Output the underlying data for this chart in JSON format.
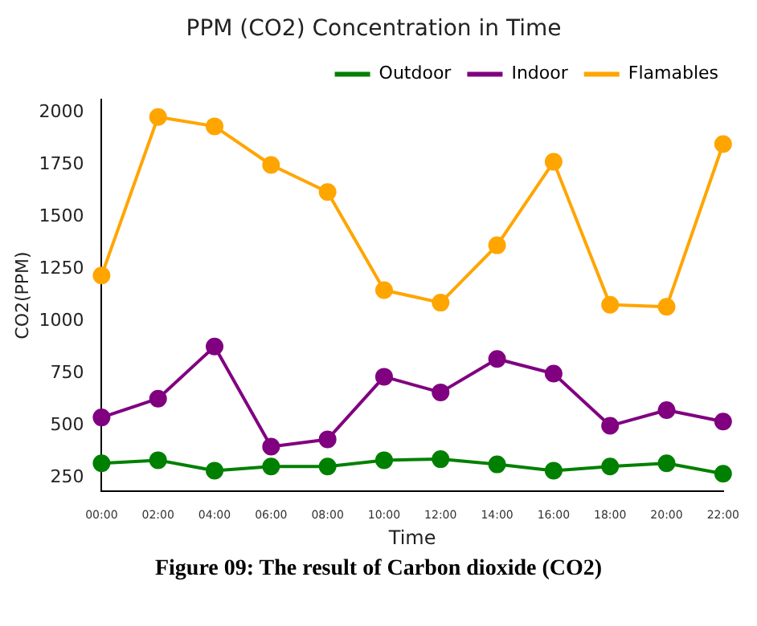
{
  "chart_data": {
    "type": "line",
    "title": "PPM (CO2) Concentration in Time",
    "xlabel": "Time",
    "ylabel": "CO2(PPM)",
    "categories": [
      "00:00",
      "02:00",
      "04:00",
      "06:00",
      "08:00",
      "10:00",
      "12:00",
      "14:00",
      "16:00",
      "18:00",
      "20:00",
      "22:00"
    ],
    "series": [
      {
        "name": "Outdoor",
        "color": "#008000",
        "values": [
          320,
          335,
          285,
          305,
          305,
          335,
          340,
          315,
          285,
          305,
          320,
          270
        ]
      },
      {
        "name": "Indoor",
        "color": "#800080",
        "values": [
          540,
          630,
          880,
          400,
          435,
          735,
          660,
          820,
          750,
          500,
          575,
          520
        ]
      },
      {
        "name": "Flamables",
        "color": "#ffa500",
        "values": [
          1220,
          1980,
          1935,
          1750,
          1620,
          1150,
          1090,
          1365,
          1765,
          1080,
          1070,
          1850
        ]
      }
    ],
    "ylim": [
      185,
      2065
    ],
    "yticks": [
      250,
      500,
      750,
      1000,
      1250,
      1500,
      1750,
      2000
    ],
    "legend": "top right",
    "marker": "circle",
    "line_style": "solid",
    "grid": false,
    "annotations": [
      "Figure 09:  The result of Carbon dioxide (CO2)"
    ]
  }
}
